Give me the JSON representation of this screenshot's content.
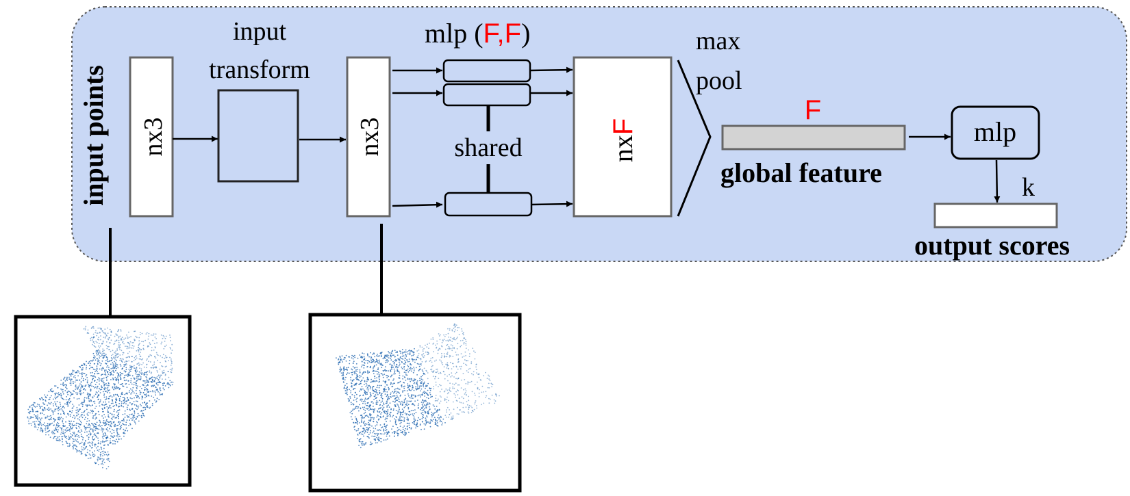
{
  "labels": {
    "input_points": "input points",
    "nx3_a": "nx3",
    "input_transform_line1": "input",
    "input_transform_line2": "transform",
    "nx3_b": "nx3",
    "mlp_prefix": "mlp (",
    "mlp_f1": "F",
    "mlp_comma": ",",
    "mlp_f2": "F",
    "mlp_suffix": ")",
    "shared": "shared",
    "nxF_prefix": "nx",
    "nxF_F": "F",
    "max": "max",
    "pool": "pool",
    "feature_dim": "F",
    "global_feature": "global feature",
    "mlp2": "mlp",
    "k": "k",
    "output_scores": "output scores"
  },
  "colors": {
    "panel_fill": "#c9d8f5",
    "highlight_red": "#ff0000",
    "global_bar": "#d3d3d3",
    "point_blue": "#2e6fb4"
  },
  "thumbnails": [
    {
      "name": "input-point-cloud"
    },
    {
      "name": "transformed-point-cloud"
    }
  ]
}
